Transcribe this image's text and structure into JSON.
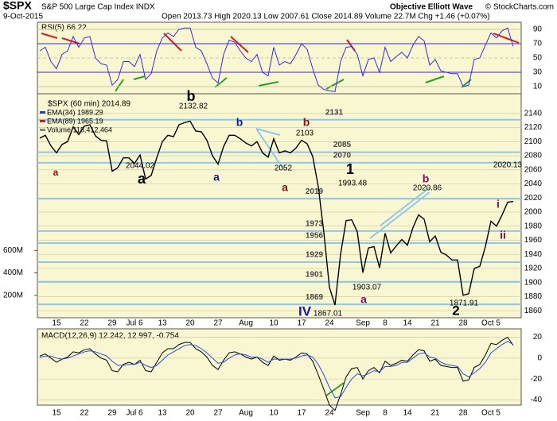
{
  "header": {
    "symbol": "$SPX",
    "name": "S&P 500 Large Cap Index INDX",
    "date": "9-Oct-2015",
    "quote": "Open 2013.73  High 2020.13  Low 2007.61  Close 2014.89  Volume 22.7M  Chg +1.46 (+0.07%)",
    "watermark": "Objective Elliott Wave",
    "credit": "© StockCharts.com"
  },
  "chart_data": [
    {
      "type": "line",
      "title": "RSI(5) 66.22",
      "ylim": [
        0,
        100
      ],
      "yticks": [
        10,
        30,
        50,
        70,
        90
      ],
      "series": [
        {
          "color": "#3a2ad0",
          "values": [
            60,
            65,
            45,
            35,
            55,
            60,
            80,
            65,
            78,
            80,
            50,
            42,
            40,
            12,
            20,
            45,
            45,
            38,
            55,
            20,
            28,
            60,
            78,
            85,
            80,
            90,
            92,
            92,
            65,
            60,
            42,
            22,
            15,
            55,
            75,
            72,
            60,
            50,
            45,
            55,
            30,
            25,
            65,
            40,
            45,
            42,
            55,
            70,
            62,
            35,
            12,
            6,
            4,
            3,
            45,
            65,
            66,
            55,
            25,
            48,
            50,
            30,
            65,
            45,
            52,
            58,
            50,
            68,
            80,
            74,
            40,
            48,
            32,
            30,
            28,
            28,
            10,
            12,
            48,
            50,
            68,
            85,
            78,
            88,
            92,
            66.22
          ]
        }
      ]
    },
    {
      "type": "line",
      "title": "$SPX (60 min) 2014.89",
      "categories": [
        null,
        null,
        null,
        "15",
        null,
        null,
        null,
        null,
        "22",
        null,
        null,
        null,
        null,
        "29",
        null,
        null,
        null,
        "Jul 6",
        null,
        null,
        null,
        null,
        "13",
        null,
        null,
        null,
        null,
        "20",
        null,
        null,
        null,
        null,
        "27",
        null,
        null,
        null,
        null,
        "Aug",
        null,
        null,
        null,
        null,
        "10",
        null,
        null,
        null,
        null,
        "17",
        null,
        null,
        null,
        null,
        "24",
        null,
        null,
        null,
        null,
        null,
        "Sep",
        null,
        null,
        null,
        "8",
        null,
        null,
        null,
        "14",
        null,
        null,
        null,
        null,
        "21",
        null,
        null,
        null,
        null,
        "28",
        null,
        null,
        null,
        null,
        "Oct 5",
        null,
        null,
        null,
        null
      ],
      "series": [
        {
          "name": "$SPX",
          "color": "#000000",
          "values": [
            2105,
            2109,
            2094,
            2084,
            2096,
            2100,
            2121,
            2110,
            2122,
            2124,
            2108,
            2102,
            2101,
            2058,
            2063,
            2077,
            2077,
            2069,
            2081,
            2047,
            2052,
            2077,
            2100,
            2109,
            2107,
            2124,
            2127,
            2129,
            2115,
            2114,
            2102,
            2080,
            2068,
            2093,
            2109,
            2109,
            2104,
            2098,
            2094,
            2100,
            2084,
            2078,
            2104,
            2084,
            2087,
            2084,
            2091,
            2102,
            2097,
            2079,
            2036,
            1971,
            1893,
            1868,
            1940,
            1988,
            1989,
            1972,
            1914,
            1949,
            1951,
            1921,
            1970,
            1942,
            1952,
            1961,
            1953,
            1978,
            1996,
            1990,
            1958,
            1966,
            1943,
            1939,
            1932,
            1932,
            1882,
            1884,
            1920,
            1923,
            1951,
            1987,
            1980,
            1996,
            2014,
            2015
          ]
        }
      ],
      "legend": [
        {
          "label": "EMA(34) 1989.29",
          "color": "#1f3fbf"
        },
        {
          "label": "EMA(89) 1965.19",
          "color": "#c0202a"
        },
        {
          "label": "Volume 118,412,464",
          "color": "#888888"
        }
      ],
      "levels": [
        2131,
        2085,
        2070,
        2019,
        1973,
        1956,
        1929,
        1901,
        1869
      ],
      "level_color": "#8fc6ea",
      "annotations": [
        {
          "text": "a",
          "color": "#8b1010"
        },
        {
          "text": "2132.82",
          "color": "#000000"
        },
        {
          "text": "b",
          "color": "#000000"
        },
        {
          "text": "2044.02",
          "color": "#000000"
        },
        {
          "text": "a",
          "color": "#000000"
        },
        {
          "text": "b",
          "color": "#1a1aa0"
        },
        {
          "text": "a",
          "color": "#1a1aa0"
        },
        {
          "text": "2052",
          "color": "#000000"
        },
        {
          "text": "a",
          "color": "#8b1010"
        },
        {
          "text": "b",
          "color": "#8b1010"
        },
        {
          "text": "2103",
          "color": "#000000"
        },
        {
          "text": "1",
          "color": "#000000"
        },
        {
          "text": "1993.48",
          "color": "#000000"
        },
        {
          "text": "b",
          "color": "#7a1060"
        },
        {
          "text": "2020.86",
          "color": "#000000"
        },
        {
          "text": "2020.13",
          "color": "#000000"
        },
        {
          "text": "i",
          "color": "#7a1060"
        },
        {
          "text": "ii",
          "color": "#7a1060"
        },
        {
          "text": "1903.07",
          "color": "#000000"
        },
        {
          "text": "a",
          "color": "#7a1060"
        },
        {
          "text": "IV",
          "color": "#1a1aa0"
        },
        {
          "text": "1867.01",
          "color": "#000000"
        },
        {
          "text": "2",
          "color": "#000000"
        },
        {
          "text": "1871.91",
          "color": "#000000"
        }
      ],
      "ylim": [
        1850,
        2168
      ],
      "yticks": [
        1860,
        1880,
        1900,
        1920,
        1940,
        1960,
        1980,
        2000,
        2020,
        2040,
        2060,
        2080,
        2100,
        2120,
        2140
      ],
      "y2lim": [
        0,
        2000000000
      ],
      "y2ticks": [
        {
          "value": 200000000,
          "label": "200M"
        },
        {
          "value": 400000000,
          "label": "400M"
        },
        {
          "value": 600000000,
          "label": "600M"
        }
      ]
    },
    {
      "type": "line",
      "title": "MACD(12,26,9) 12.242, 12.997, -0.754",
      "ylim": [
        -45,
        28
      ],
      "yticks": [
        20,
        0,
        -20,
        -40
      ],
      "series": [
        {
          "color": "#000000",
          "values": [
            2,
            4,
            0,
            -4,
            -1,
            1,
            6,
            5,
            8,
            9,
            4,
            0,
            -2,
            -12,
            -13,
            -6,
            -4,
            -6,
            -2,
            -12,
            -13,
            -4,
            5,
            9,
            9,
            13,
            15,
            15,
            9,
            6,
            1,
            -7,
            -11,
            -2,
            5,
            6,
            4,
            1,
            -1,
            1,
            -4,
            -7,
            2,
            -2,
            -1,
            -2,
            1,
            5,
            4,
            -3,
            -16,
            -30,
            -45,
            -50,
            -35,
            -18,
            -10,
            -9,
            -20,
            -12,
            -9,
            -14,
            -3,
            -7,
            -5,
            -2,
            -3,
            3,
            8,
            7,
            -3,
            -1,
            -7,
            -8,
            -9,
            -9,
            -22,
            -21,
            -9,
            -6,
            3,
            14,
            13,
            17,
            20,
            12.242
          ]
        },
        {
          "color": "#2a4ad8",
          "values": [
            1,
            2,
            2,
            0,
            -1,
            0,
            2,
            4,
            6,
            7,
            6,
            4,
            2,
            -3,
            -7,
            -7,
            -6,
            -6,
            -4,
            -7,
            -9,
            -7,
            -2,
            3,
            6,
            9,
            12,
            13,
            12,
            9,
            5,
            0,
            -5,
            -4,
            0,
            3,
            4,
            3,
            1,
            1,
            -1,
            -4,
            -1,
            -1,
            -1,
            -1,
            0,
            2,
            3,
            1,
            -6,
            -16,
            -28,
            -38,
            -37,
            -28,
            -20,
            -15,
            -17,
            -15,
            -12,
            -13,
            -8,
            -8,
            -7,
            -4,
            -4,
            0,
            4,
            5,
            1,
            0,
            -4,
            -6,
            -7,
            -8,
            -15,
            -18,
            -14,
            -10,
            -4,
            5,
            9,
            13,
            16,
            12.997
          ]
        }
      ]
    }
  ]
}
